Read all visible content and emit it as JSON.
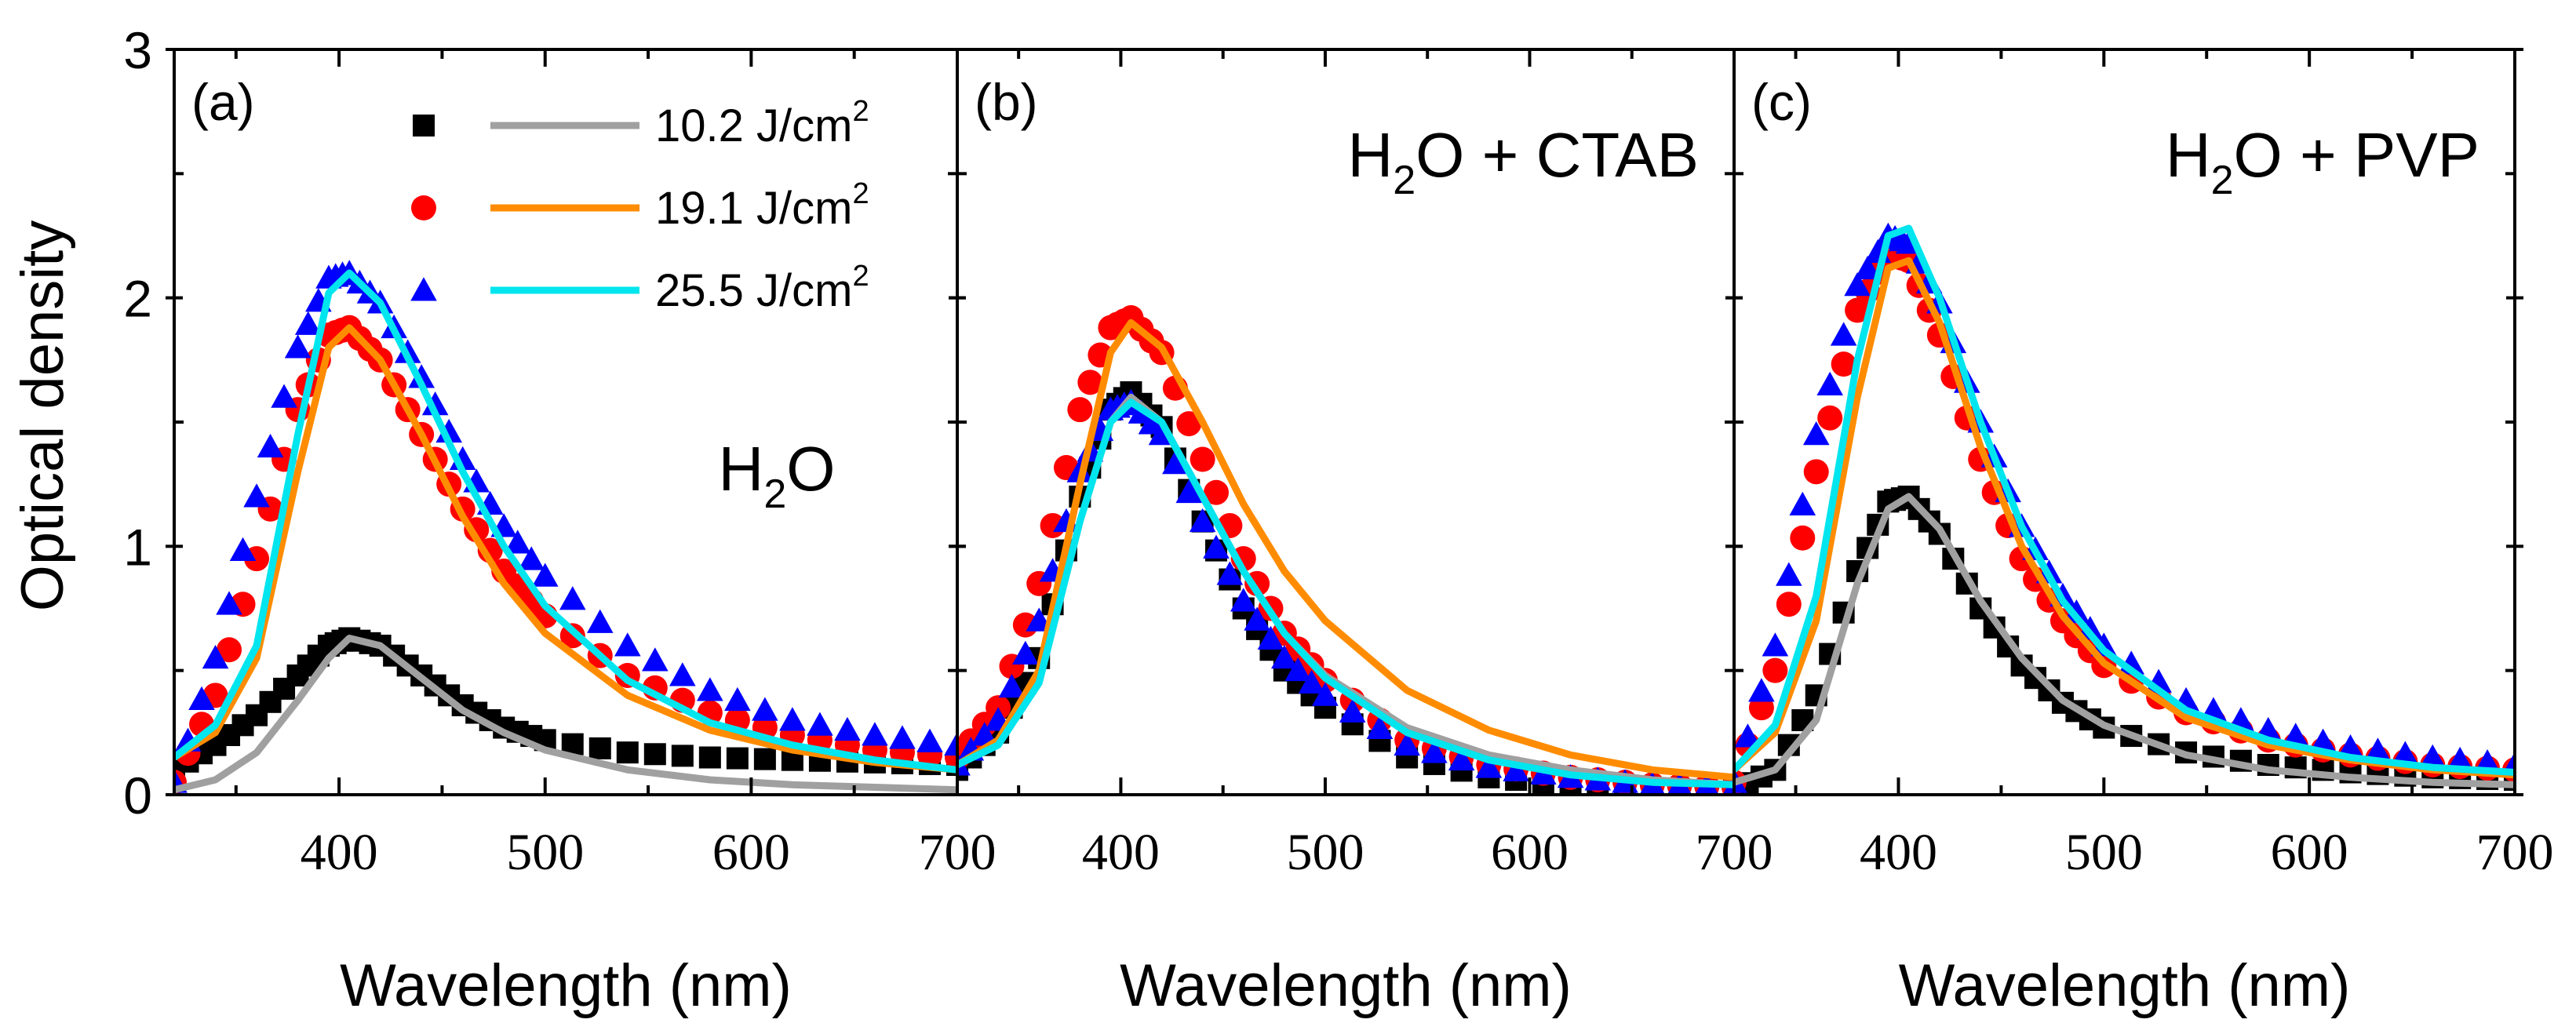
{
  "chart_data": [
    {
      "type": "scatter",
      "panel_label": "(a)",
      "annotation": {
        "main": "H",
        "sub": "2",
        "rest": "O"
      },
      "xlim": [
        320,
        700
      ],
      "ylim": [
        0,
        3
      ],
      "xticks": [
        400,
        500,
        600,
        700
      ],
      "yticks": [
        0,
        1,
        2,
        3
      ],
      "xlabel": "Wavelength (nm)",
      "ylabel": "Optical density",
      "series": [
        {
          "name": "10.2 J/cm2",
          "color": "#000000",
          "marker": "square",
          "line_color": "#a0a0a0",
          "x": [
            320,
            340,
            360,
            380,
            395,
            405,
            420,
            440,
            460,
            480,
            500,
            540,
            580,
            620,
            660,
            700
          ],
          "y": [
            0.1,
            0.2,
            0.32,
            0.48,
            0.6,
            0.63,
            0.6,
            0.48,
            0.36,
            0.27,
            0.22,
            0.17,
            0.15,
            0.14,
            0.13,
            0.12
          ],
          "line_y": [
            0.02,
            0.06,
            0.17,
            0.38,
            0.55,
            0.63,
            0.6,
            0.47,
            0.34,
            0.25,
            0.18,
            0.1,
            0.06,
            0.04,
            0.03,
            0.02
          ]
        },
        {
          "name": "19.1 J/cm2",
          "color": "#ff0000",
          "marker": "circle",
          "line_color": "#ff8c00",
          "x": [
            320,
            340,
            360,
            380,
            395,
            405,
            420,
            440,
            460,
            480,
            500,
            540,
            580,
            620,
            660,
            700
          ],
          "y": [
            0.05,
            0.4,
            0.95,
            1.55,
            1.85,
            1.88,
            1.75,
            1.45,
            1.15,
            0.9,
            0.72,
            0.48,
            0.33,
            0.24,
            0.18,
            0.15
          ],
          "line_y": [
            0.15,
            0.25,
            0.55,
            1.3,
            1.8,
            1.88,
            1.75,
            1.45,
            1.12,
            0.85,
            0.65,
            0.4,
            0.26,
            0.18,
            0.13,
            0.1
          ]
        },
        {
          "name": "25.5 J/cm2",
          "color": "#0000ff",
          "marker": "triangle",
          "line_color": "#00e5ee",
          "x": [
            320,
            340,
            360,
            380,
            395,
            405,
            420,
            440,
            460,
            480,
            500,
            540,
            580,
            620,
            660,
            700
          ],
          "y": [
            0.05,
            0.55,
            1.2,
            1.8,
            2.08,
            2.1,
            1.98,
            1.68,
            1.35,
            1.08,
            0.88,
            0.6,
            0.42,
            0.3,
            0.24,
            0.2
          ],
          "line_y": [
            0.15,
            0.28,
            0.6,
            1.45,
            2.02,
            2.1,
            1.98,
            1.65,
            1.3,
            1.0,
            0.76,
            0.46,
            0.29,
            0.2,
            0.14,
            0.1
          ]
        }
      ]
    },
    {
      "type": "scatter",
      "panel_label": "(b)",
      "annotation": {
        "main": "H",
        "sub": "2",
        "rest": "O + CTAB"
      },
      "xlim": [
        320,
        700
      ],
      "ylim": [
        0,
        3
      ],
      "xticks": [
        400,
        500,
        600,
        700
      ],
      "yticks": [
        0,
        1,
        2,
        3
      ],
      "xlabel": "Wavelength (nm)",
      "series": [
        {
          "name": "10.2 J/cm2",
          "color": "#000000",
          "marker": "square",
          "line_color": "#a0a0a0",
          "x": [
            320,
            340,
            360,
            380,
            395,
            405,
            420,
            440,
            460,
            480,
            500,
            540,
            580,
            620,
            660,
            700
          ],
          "y": [
            0.1,
            0.25,
            0.55,
            1.2,
            1.55,
            1.62,
            1.48,
            1.1,
            0.75,
            0.5,
            0.35,
            0.15,
            0.07,
            0.04,
            0.02,
            0.02
          ],
          "line_y": [
            0.12,
            0.2,
            0.45,
            1.1,
            1.5,
            1.6,
            1.5,
            1.2,
            0.9,
            0.65,
            0.48,
            0.27,
            0.16,
            0.1,
            0.06,
            0.04
          ]
        },
        {
          "name": "19.1 J/cm2",
          "color": "#ff0000",
          "marker": "circle",
          "line_color": "#ff8c00",
          "x": [
            320,
            340,
            360,
            380,
            395,
            405,
            420,
            440,
            460,
            480,
            500,
            540,
            580,
            620,
            660,
            700
          ],
          "y": [
            0.15,
            0.35,
            0.85,
            1.55,
            1.88,
            1.92,
            1.78,
            1.35,
            0.95,
            0.65,
            0.46,
            0.22,
            0.12,
            0.07,
            0.04,
            0.03
          ],
          "line_y": [
            0.12,
            0.22,
            0.5,
            1.25,
            1.78,
            1.9,
            1.8,
            1.5,
            1.17,
            0.9,
            0.7,
            0.42,
            0.26,
            0.16,
            0.1,
            0.07
          ]
        },
        {
          "name": "25.5 J/cm2",
          "color": "#0000ff",
          "marker": "triangle",
          "line_color": "#00e5ee",
          "x": [
            320,
            340,
            360,
            380,
            395,
            405,
            420,
            440,
            460,
            480,
            500,
            540,
            580,
            620,
            660,
            700
          ],
          "y": [
            0.12,
            0.3,
            0.7,
            1.3,
            1.55,
            1.58,
            1.45,
            1.1,
            0.78,
            0.55,
            0.4,
            0.2,
            0.11,
            0.07,
            0.04,
            0.03
          ],
          "line_y": [
            0.12,
            0.2,
            0.45,
            1.1,
            1.5,
            1.58,
            1.5,
            1.2,
            0.9,
            0.65,
            0.47,
            0.25,
            0.14,
            0.08,
            0.05,
            0.04
          ]
        }
      ]
    },
    {
      "type": "scatter",
      "panel_label": "(c)",
      "annotation": {
        "main": "H",
        "sub": "2",
        "rest": "O + PVP"
      },
      "xlim": [
        320,
        700
      ],
      "ylim": [
        0,
        3
      ],
      "xticks": [
        400,
        500,
        600,
        700
      ],
      "yticks": [
        0,
        1,
        2,
        3
      ],
      "xlabel": "Wavelength (nm)",
      "series": [
        {
          "name": "10.2 J/cm2",
          "color": "#000000",
          "marker": "square",
          "line_color": "#a0a0a0",
          "x": [
            320,
            340,
            360,
            380,
            395,
            405,
            420,
            440,
            460,
            480,
            500,
            540,
            580,
            620,
            660,
            700
          ],
          "y": [
            0.02,
            0.1,
            0.4,
            0.9,
            1.18,
            1.2,
            1.05,
            0.75,
            0.52,
            0.37,
            0.27,
            0.17,
            0.12,
            0.09,
            0.07,
            0.06
          ],
          "line_y": [
            0.05,
            0.1,
            0.3,
            0.85,
            1.15,
            1.2,
            1.07,
            0.78,
            0.55,
            0.38,
            0.28,
            0.16,
            0.1,
            0.07,
            0.05,
            0.04
          ]
        },
        {
          "name": "19.1 J/cm2",
          "color": "#ff0000",
          "marker": "circle",
          "line_color": "#ff8c00",
          "x": [
            320,
            340,
            360,
            380,
            395,
            405,
            420,
            440,
            460,
            480,
            500,
            540,
            580,
            620,
            660,
            700
          ],
          "y": [
            0.05,
            0.5,
            1.3,
            1.95,
            2.18,
            2.15,
            1.85,
            1.35,
            0.95,
            0.7,
            0.52,
            0.33,
            0.22,
            0.16,
            0.12,
            0.1
          ],
          "line_y": [
            0.1,
            0.25,
            0.7,
            1.6,
            2.12,
            2.15,
            1.9,
            1.4,
            1.0,
            0.72,
            0.53,
            0.31,
            0.2,
            0.14,
            0.1,
            0.08
          ]
        },
        {
          "name": "25.5 J/cm2",
          "color": "#0000ff",
          "marker": "triangle",
          "line_color": "#00e5ee",
          "x": [
            320,
            340,
            360,
            380,
            395,
            405,
            420,
            440,
            460,
            480,
            500,
            540,
            580,
            620,
            660,
            700
          ],
          "y": [
            0.05,
            0.6,
            1.45,
            2.05,
            2.25,
            2.22,
            1.98,
            1.5,
            1.08,
            0.8,
            0.6,
            0.38,
            0.26,
            0.19,
            0.15,
            0.12
          ],
          "line_y": [
            0.1,
            0.28,
            0.8,
            1.75,
            2.25,
            2.28,
            2.0,
            1.5,
            1.08,
            0.78,
            0.58,
            0.34,
            0.22,
            0.15,
            0.11,
            0.09
          ]
        }
      ]
    }
  ],
  "legend": {
    "entries": [
      {
        "value": "10.2 J/cm",
        "sup": "2"
      },
      {
        "value": "19.1 J/cm",
        "sup": "2"
      },
      {
        "value": "25.5 J/cm",
        "sup": "2"
      }
    ]
  }
}
